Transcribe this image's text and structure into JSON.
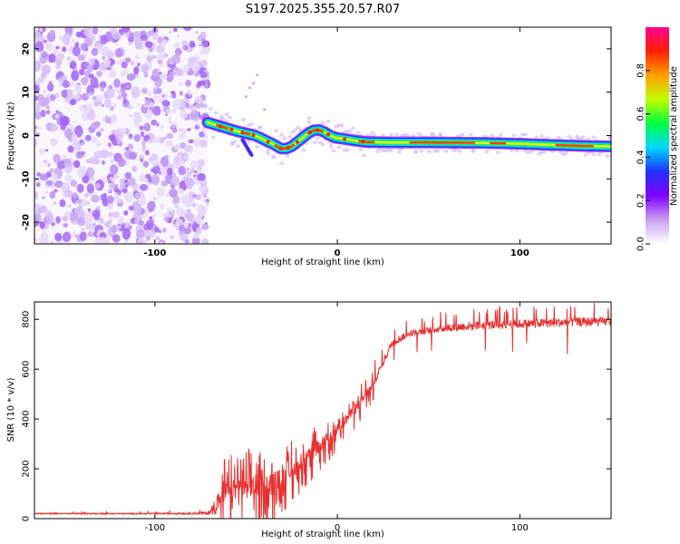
{
  "chart_data": [
    {
      "type": "heatmap",
      "title": "S197.2025.355.20.57.R07",
      "xlabel": "Height of straight line (km)",
      "ylabel": "Frequency (Hz)",
      "xlim": [
        -166,
        150
      ],
      "ylim": [
        -25,
        25
      ],
      "xticks": [
        -100,
        0,
        100
      ],
      "yticks": [
        -20,
        -10,
        0,
        10,
        20
      ],
      "colorbar": {
        "label": "Normalized spectral amplitude",
        "range": [
          0,
          1
        ],
        "ticks": [
          0.0,
          0.2,
          0.4,
          0.6,
          0.8
        ],
        "colors": [
          "#ffffff",
          "#c8a0f0",
          "#8000ff",
          "#2030ff",
          "#00d8ff",
          "#00ff40",
          "#c0ff00",
          "#ffa000",
          "#ff2000",
          "#ff0090"
        ]
      },
      "noise_region": {
        "x": [
          -166,
          -71
        ],
        "description": "broadband noise"
      },
      "ridge": {
        "x": [
          -71,
          -67,
          -63,
          -59,
          -55,
          -50,
          -45,
          -40,
          -35,
          -31,
          -28,
          -25,
          -22,
          -19,
          -16,
          -13,
          -10,
          -7,
          -4,
          -1,
          4,
          10,
          16,
          30,
          50,
          80,
          100,
          120,
          135,
          150
        ],
        "y": [
          3,
          2.5,
          2,
          1.5,
          1,
          0.5,
          0,
          -1,
          -2,
          -3,
          -3,
          -2.5,
          -1.5,
          -0.5,
          0.5,
          1.2,
          1.3,
          0.8,
          0,
          -0.5,
          -0.8,
          -1.2,
          -1.5,
          -1.6,
          -1.6,
          -1.7,
          -1.9,
          -2.2,
          -2.4,
          -2.5
        ]
      }
    },
    {
      "type": "line",
      "xlabel": "Height of straight line (km)",
      "ylabel": "SNR (10 * v/v)",
      "xlim": [
        -166,
        150
      ],
      "ylim": [
        0,
        870
      ],
      "xticks": [
        -100,
        0,
        100
      ],
      "yticks": [
        0,
        200,
        400,
        600,
        800
      ],
      "series": [
        {
          "name": "SNR",
          "color": "#e83030",
          "envelope_x": [
            -166,
            -100,
            -70,
            -62,
            -55,
            -45,
            -35,
            -28,
            -20,
            -10,
            0,
            10,
            20,
            25,
            30,
            40,
            60,
            80,
            100,
            120,
            150
          ],
          "envelope_y": [
            20,
            20,
            22,
            100,
            120,
            130,
            140,
            180,
            220,
            290,
            360,
            440,
            540,
            620,
            700,
            740,
            760,
            770,
            775,
            780,
            785
          ],
          "noise_amplitude": [
            3,
            3,
            6,
            80,
            80,
            90,
            90,
            70,
            60,
            50,
            45,
            40,
            35,
            30,
            30,
            25,
            30,
            35,
            35,
            35,
            35
          ]
        }
      ]
    }
  ]
}
